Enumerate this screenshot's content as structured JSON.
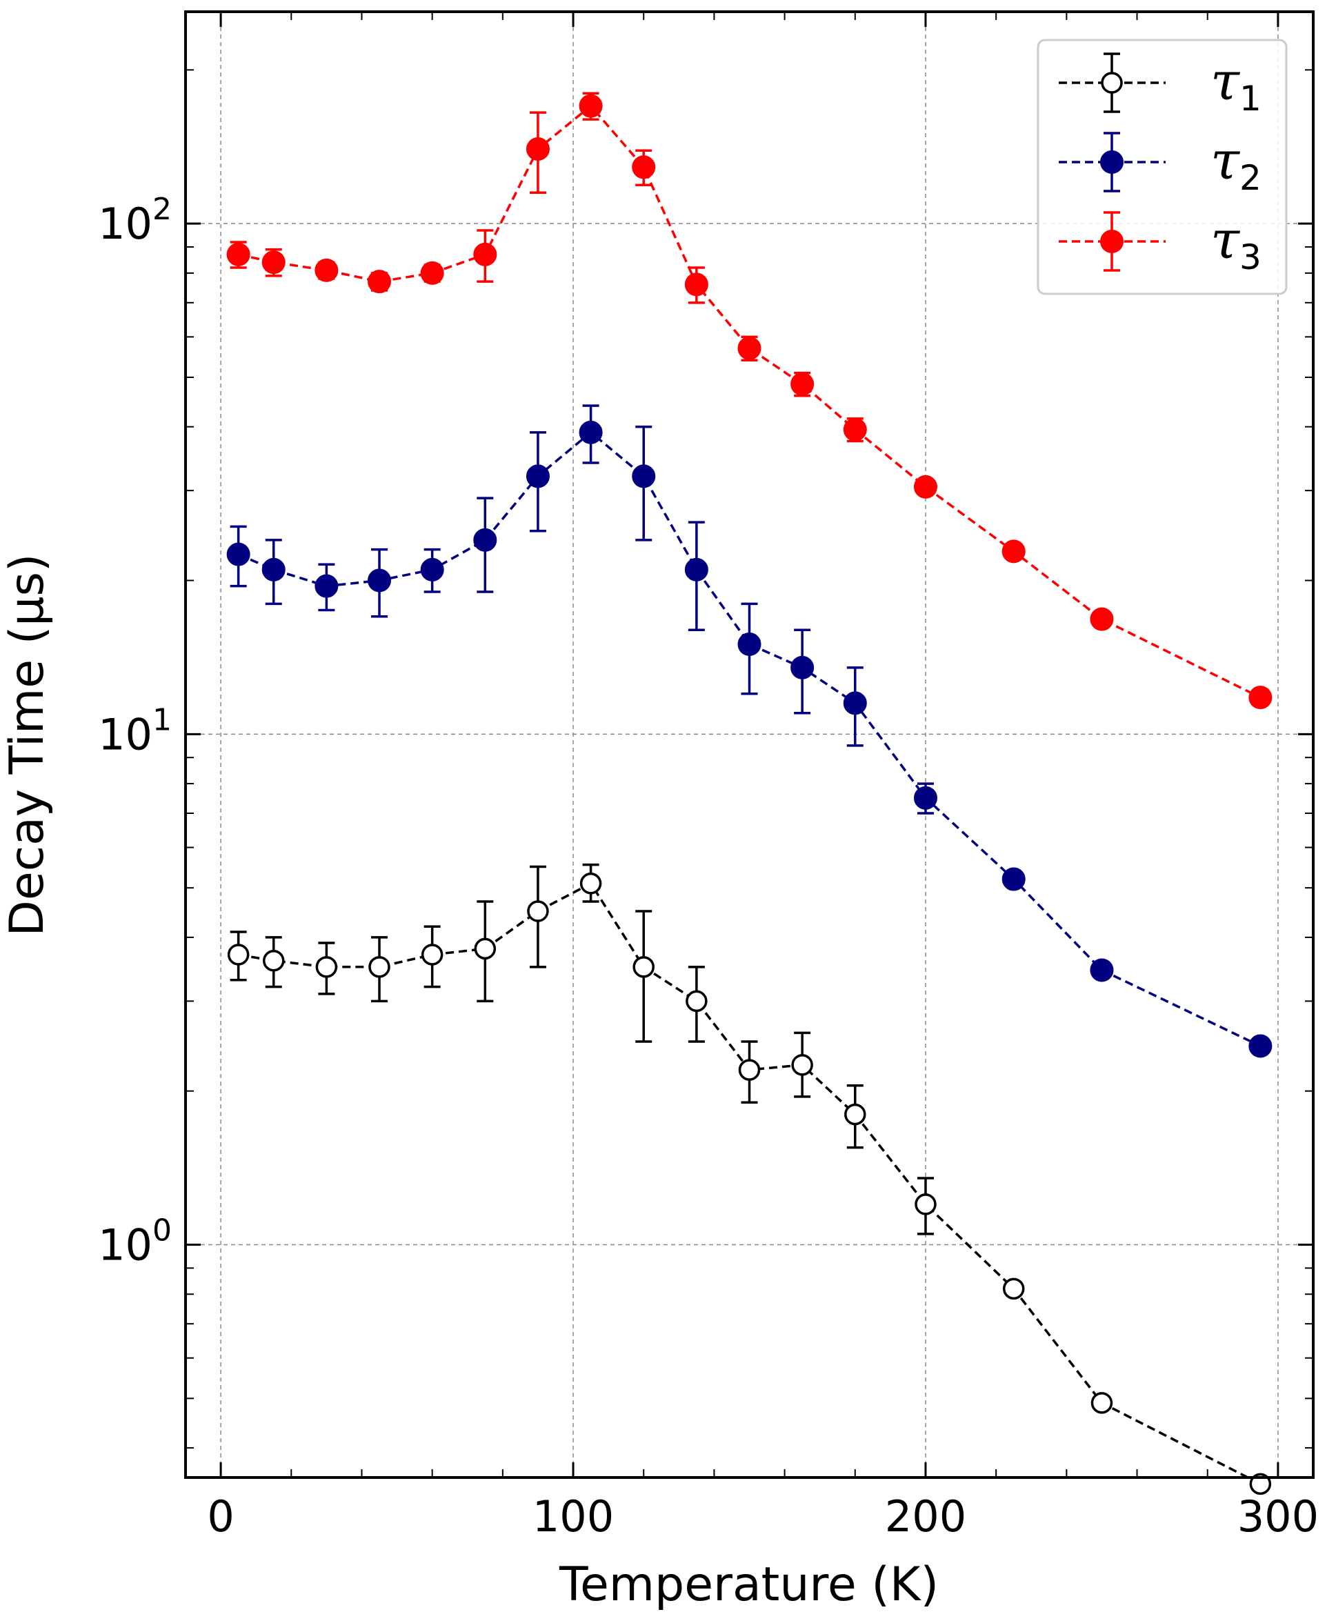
{
  "chart_data": {
    "type": "line",
    "title": "",
    "xlabel": "Temperature (K)",
    "ylabel": "Decay Time (μs)",
    "xlim": [
      -10,
      310
    ],
    "ylim": [
      0.35,
      260
    ],
    "yscale": "log",
    "grid": true,
    "legend_position": "top-right",
    "x_ticks": [
      {
        "value": 0,
        "label": "0"
      },
      {
        "value": 100,
        "label": "100"
      },
      {
        "value": 200,
        "label": "200"
      },
      {
        "value": 300,
        "label": "300"
      }
    ],
    "y_ticks": [
      {
        "value": 1,
        "base": "10",
        "exp": "0"
      },
      {
        "value": 10,
        "base": "10",
        "exp": "1"
      },
      {
        "value": 100,
        "base": "10",
        "exp": "2"
      }
    ],
    "series": [
      {
        "name": "τ",
        "subscript": "1",
        "color": "#000000",
        "marker": "open-circle",
        "x": [
          5,
          15,
          30,
          45,
          60,
          75,
          90,
          105,
          120,
          135,
          150,
          165,
          180,
          200,
          225,
          250,
          295
        ],
        "y": [
          3.7,
          3.6,
          3.5,
          3.5,
          3.7,
          3.8,
          4.5,
          5.1,
          3.5,
          3.0,
          2.2,
          2.25,
          1.8,
          1.2,
          0.82,
          0.49,
          0.34
        ],
        "yerr_low": [
          0.4,
          0.4,
          0.4,
          0.5,
          0.5,
          0.8,
          1.0,
          0.4,
          1.0,
          0.5,
          0.3,
          0.3,
          0.25,
          0.15,
          0,
          0,
          0
        ],
        "yerr_high": [
          0.4,
          0.4,
          0.4,
          0.5,
          0.5,
          0.9,
          1.0,
          0.45,
          1.0,
          0.5,
          0.3,
          0.35,
          0.25,
          0.15,
          0,
          0,
          0
        ]
      },
      {
        "name": "τ",
        "subscript": "2",
        "color": "#000080",
        "marker": "filled-circle",
        "x": [
          5,
          15,
          30,
          45,
          60,
          75,
          90,
          105,
          120,
          135,
          150,
          165,
          180,
          200,
          225,
          250,
          295
        ],
        "y": [
          22.5,
          21,
          19.5,
          20,
          21,
          24,
          32,
          39,
          32,
          21,
          15,
          13.5,
          11.5,
          7.5,
          5.2,
          3.45,
          2.45
        ],
        "yerr_low": [
          3,
          3,
          2,
          3,
          2,
          5,
          7,
          5,
          8,
          5,
          3,
          2.5,
          2,
          0.5,
          0,
          0,
          0
        ],
        "yerr_high": [
          3,
          3,
          2,
          3,
          2,
          5,
          7,
          5,
          8,
          5,
          3,
          2.5,
          2,
          0.5,
          0,
          0,
          0
        ]
      },
      {
        "name": "τ",
        "subscript": "3",
        "color": "#ff0000",
        "marker": "filled-circle",
        "x": [
          5,
          15,
          30,
          45,
          60,
          75,
          90,
          105,
          120,
          135,
          150,
          165,
          180,
          200,
          225,
          250,
          295
        ],
        "y": [
          87,
          84,
          81,
          77,
          80,
          87,
          140,
          170,
          129,
          76,
          57,
          48.5,
          39.5,
          30.5,
          22.8,
          16.8,
          11.8
        ],
        "yerr_low": [
          5,
          5,
          3,
          3,
          3,
          10,
          25,
          10,
          10,
          6,
          3,
          2.5,
          2,
          0,
          0,
          0,
          0
        ],
        "yerr_high": [
          5,
          5,
          3,
          3,
          3,
          10,
          25,
          10,
          10,
          6,
          3,
          2.5,
          2,
          0,
          0,
          0,
          0
        ]
      }
    ]
  }
}
